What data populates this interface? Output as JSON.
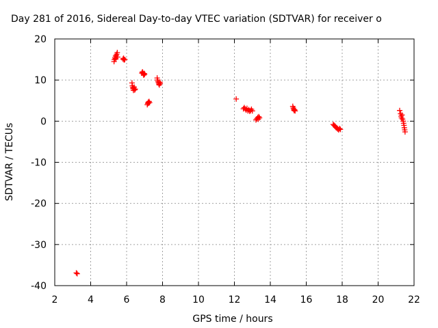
{
  "chart_data": {
    "type": "scatter",
    "title": "Day 281 of 2016, Sidereal Day-to-day VTEC variation (SDTVAR) for receiver o",
    "xlabel": "GPS time / hours",
    "ylabel": "SDTVAR / TECUs",
    "xlim": [
      2,
      22
    ],
    "ylim": [
      -40,
      20
    ],
    "xticks": [
      "2",
      "4",
      "6",
      "8",
      "10",
      "12",
      "14",
      "16",
      "18",
      "20",
      "22"
    ],
    "yticks": [
      "20",
      "10",
      "0",
      "-10",
      "-20",
      "-30",
      "-40"
    ],
    "grid": true,
    "marker": "+",
    "series": [
      {
        "name": "SDTVAR",
        "color": "#ff0000",
        "points": [
          [
            3.2,
            -36.9
          ],
          [
            3.25,
            -37.1
          ],
          [
            5.3,
            14.5
          ],
          [
            5.32,
            15.0
          ],
          [
            5.35,
            15.4
          ],
          [
            5.38,
            15.8
          ],
          [
            5.4,
            15.2
          ],
          [
            5.42,
            16.0
          ],
          [
            5.45,
            16.3
          ],
          [
            5.48,
            16.7
          ],
          [
            5.5,
            15.6
          ],
          [
            5.8,
            15.1
          ],
          [
            5.83,
            15.3
          ],
          [
            5.86,
            14.9
          ],
          [
            5.9,
            15.0
          ],
          [
            6.3,
            9.3
          ],
          [
            6.32,
            8.6
          ],
          [
            6.34,
            8.2
          ],
          [
            6.36,
            7.9
          ],
          [
            6.38,
            7.5
          ],
          [
            6.4,
            8.0
          ],
          [
            6.42,
            8.3
          ],
          [
            6.45,
            7.6
          ],
          [
            6.48,
            7.8
          ],
          [
            6.85,
            11.7
          ],
          [
            6.88,
            12.0
          ],
          [
            6.9,
            11.8
          ],
          [
            6.93,
            11.5
          ],
          [
            6.95,
            11.2
          ],
          [
            6.98,
            11.6
          ],
          [
            7.0,
            11.4
          ],
          [
            7.15,
            4.0
          ],
          [
            7.18,
            4.3
          ],
          [
            7.2,
            4.6
          ],
          [
            7.22,
            4.4
          ],
          [
            7.25,
            4.8
          ],
          [
            7.28,
            4.5
          ],
          [
            7.7,
            10.5
          ],
          [
            7.72,
            10.0
          ],
          [
            7.75,
            9.6
          ],
          [
            7.78,
            9.3
          ],
          [
            7.8,
            9.0
          ],
          [
            7.82,
            8.8
          ],
          [
            7.85,
            9.5
          ],
          [
            7.87,
            9.2
          ],
          [
            12.1,
            5.4
          ],
          [
            12.5,
            3.0
          ],
          [
            12.55,
            3.3
          ],
          [
            12.6,
            3.0
          ],
          [
            12.65,
            2.7
          ],
          [
            12.7,
            3.1
          ],
          [
            12.75,
            2.5
          ],
          [
            12.8,
            2.8
          ],
          [
            12.85,
            2.4
          ],
          [
            12.9,
            2.6
          ],
          [
            12.95,
            2.9
          ],
          [
            13.0,
            2.5
          ],
          [
            13.2,
            0.3
          ],
          [
            13.25,
            0.6
          ],
          [
            13.3,
            0.9
          ],
          [
            13.33,
            0.5
          ],
          [
            13.36,
            1.1
          ],
          [
            13.4,
            0.8
          ],
          [
            15.25,
            3.6
          ],
          [
            15.28,
            3.2
          ],
          [
            15.3,
            2.9
          ],
          [
            15.32,
            2.6
          ],
          [
            15.35,
            2.8
          ],
          [
            15.38,
            2.5
          ],
          [
            17.5,
            -0.8
          ],
          [
            17.55,
            -1.0
          ],
          [
            17.6,
            -1.2
          ],
          [
            17.65,
            -1.5
          ],
          [
            17.7,
            -1.7
          ],
          [
            17.75,
            -1.9
          ],
          [
            17.8,
            -2.1
          ],
          [
            17.85,
            -1.8
          ],
          [
            17.9,
            -2.0
          ],
          [
            21.2,
            2.6
          ],
          [
            21.25,
            1.8
          ],
          [
            21.28,
            1.2
          ],
          [
            21.3,
            0.8
          ],
          [
            21.33,
            1.5
          ],
          [
            21.36,
            0.5
          ],
          [
            21.4,
            0.0
          ],
          [
            21.42,
            -0.5
          ],
          [
            21.44,
            -1.0
          ],
          [
            21.46,
            -1.6
          ],
          [
            21.48,
            -2.1
          ],
          [
            21.5,
            -2.6
          ]
        ]
      }
    ]
  }
}
